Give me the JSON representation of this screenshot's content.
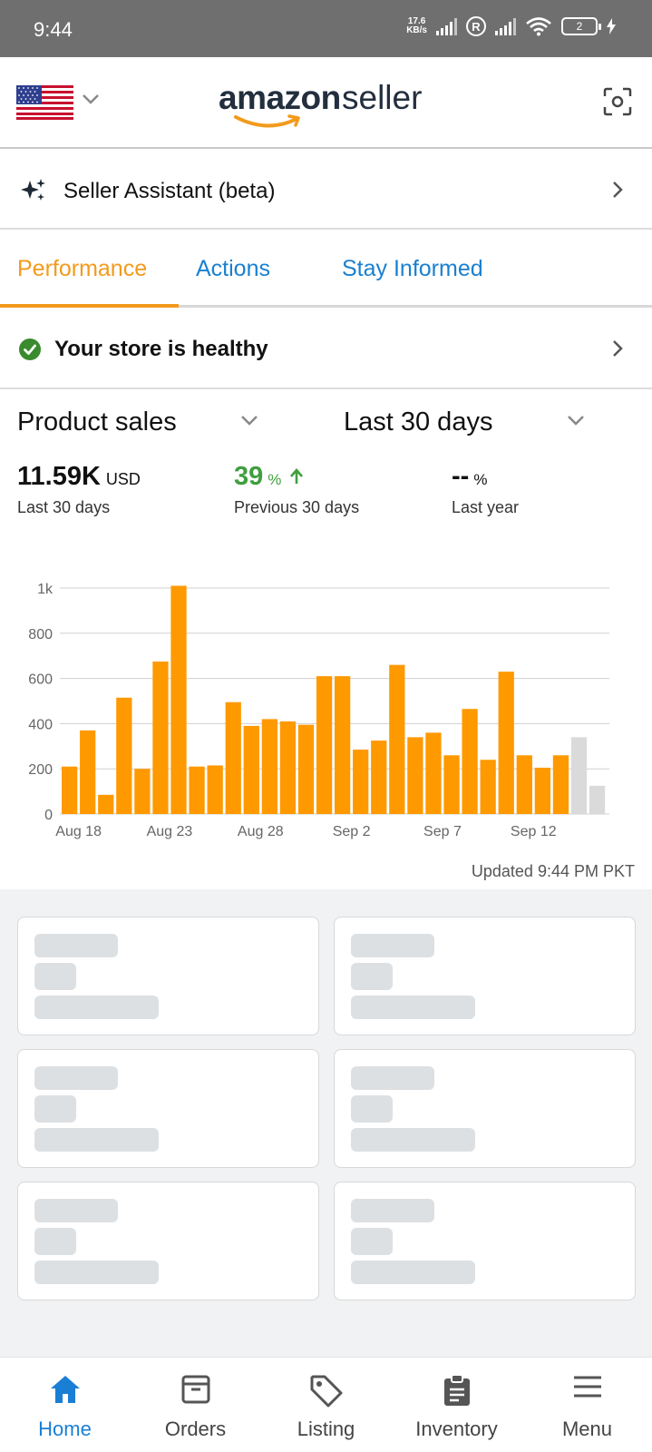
{
  "status_bar": {
    "time": "9:44",
    "net_speed_value": "17.6",
    "net_speed_unit": "KB/s",
    "roaming_badge": "R",
    "battery": "2"
  },
  "header": {
    "country": "US",
    "logo_word1": "amazon",
    "logo_word2": "seller",
    "icons": [
      "us-flag-icon",
      "chevron-down-icon",
      "scan-icon"
    ]
  },
  "assistant": {
    "label": "Seller Assistant (beta)",
    "icon": "sparkle-icon"
  },
  "tabs": [
    {
      "label": "Performance",
      "active": true
    },
    {
      "label": "Actions",
      "active": false
    },
    {
      "label": "Stay Informed",
      "active": false
    }
  ],
  "health": {
    "label": "Your store is healthy",
    "icon": "check-circle-icon",
    "color": "#3a8a2e"
  },
  "sales": {
    "metric_select": "Product sales",
    "period_select": "Last 30 days",
    "metrics": [
      {
        "value": "11.59K",
        "unit": "USD",
        "label": "Last 30 days"
      },
      {
        "value": "39",
        "unit": "%",
        "trend": "up",
        "label": "Previous 30 days"
      },
      {
        "value": "--",
        "unit": "%",
        "label": "Last year"
      }
    ],
    "updated": "Updated 9:44 PM PKT"
  },
  "chart_data": {
    "type": "bar",
    "title": "",
    "xlabel": "",
    "ylabel": "",
    "ylim": [
      0,
      1000
    ],
    "yticks": [
      "0",
      "200",
      "400",
      "600",
      "800",
      "1k"
    ],
    "xticks": [
      "Aug 18",
      "Aug 23",
      "Aug 28",
      "Sep 2",
      "Sep 7",
      "Sep 12"
    ],
    "categories": [
      "Aug 18",
      "Aug 19",
      "Aug 20",
      "Aug 21",
      "Aug 22",
      "Aug 23",
      "Aug 24",
      "Aug 25",
      "Aug 26",
      "Aug 27",
      "Aug 28",
      "Aug 29",
      "Aug 30",
      "Aug 31",
      "Sep 1",
      "Sep 2",
      "Sep 3",
      "Sep 4",
      "Sep 5",
      "Sep 6",
      "Sep 7",
      "Sep 8",
      "Sep 9",
      "Sep 10",
      "Sep 11",
      "Sep 12",
      "Sep 13",
      "Sep 14",
      "Sep 15",
      "Sep 16"
    ],
    "values": [
      210,
      370,
      85,
      515,
      200,
      675,
      1010,
      210,
      215,
      495,
      390,
      420,
      410,
      395,
      610,
      610,
      285,
      325,
      660,
      340,
      360,
      260,
      465,
      240,
      630,
      260,
      205,
      260,
      340,
      125
    ],
    "bar_colors": [
      "#ff9900",
      "#ff9900",
      "#ff9900",
      "#ff9900",
      "#ff9900",
      "#ff9900",
      "#ff9900",
      "#ff9900",
      "#ff9900",
      "#ff9900",
      "#ff9900",
      "#ff9900",
      "#ff9900",
      "#ff9900",
      "#ff9900",
      "#ff9900",
      "#ff9900",
      "#ff9900",
      "#ff9900",
      "#ff9900",
      "#ff9900",
      "#ff9900",
      "#ff9900",
      "#ff9900",
      "#ff9900",
      "#ff9900",
      "#ff9900",
      "#ff9900",
      "#dadada",
      "#dadada"
    ],
    "grid": true
  },
  "cards_loading": 6,
  "bottom_nav": [
    {
      "label": "Home",
      "icon": "home-icon",
      "active": true
    },
    {
      "label": "Orders",
      "icon": "box-icon",
      "active": false
    },
    {
      "label": "Listing",
      "icon": "tag-icon",
      "active": false
    },
    {
      "label": "Inventory",
      "icon": "clipboard-icon",
      "active": false
    },
    {
      "label": "Menu",
      "icon": "hamburger-menu-icon",
      "active": false
    }
  ],
  "colors": {
    "accent_orange": "#f39a1c",
    "tab_blue": "#1a80d0",
    "positive_green": "#3f9f3f",
    "bar_orange": "#ff9900",
    "bar_future": "#dadada"
  }
}
